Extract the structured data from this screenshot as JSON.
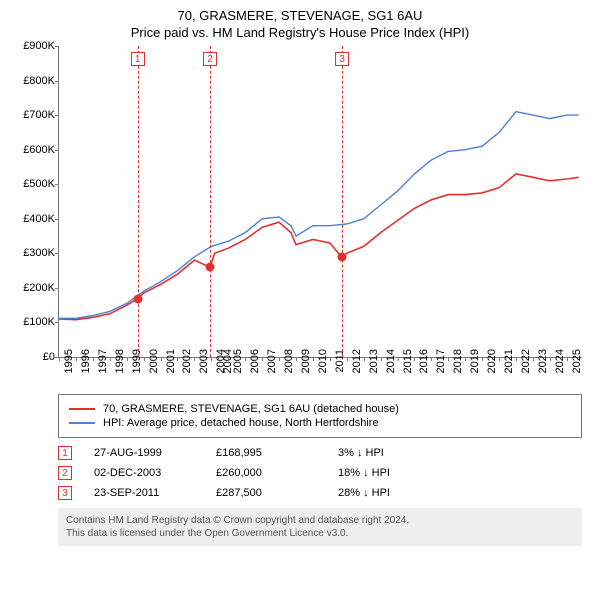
{
  "title": {
    "line1": "70, GRASMERE, STEVENAGE, SG1 6AU",
    "line2": "Price paid vs. HM Land Registry's House Price Index (HPI)"
  },
  "chart": {
    "type": "line",
    "background_color": "#ffffff",
    "axis_color": "#777777",
    "ylim": [
      0,
      900
    ],
    "ytick_step": 100,
    "ytick_prefix": "£",
    "ytick_suffix": "K",
    "xlim": [
      1995,
      2025.9
    ],
    "xticks": [
      1995,
      1996,
      1997,
      1998,
      1999,
      2000,
      2001,
      2002,
      2003,
      2004,
      2004,
      2005,
      2006,
      2007,
      2008,
      2009,
      2010,
      2011,
      2012,
      2013,
      2014,
      2015,
      2016,
      2017,
      2018,
      2019,
      2020,
      2021,
      2022,
      2023,
      2024,
      2025
    ],
    "label_fontsize": 11,
    "series": [
      {
        "name": "property",
        "color": "#e03030",
        "line_width": 1.6,
        "legend": "70, GRASMERE, STEVENAGE, SG1 6AU (detached house)",
        "points": [
          [
            1995,
            110
          ],
          [
            1996,
            108
          ],
          [
            1997,
            115
          ],
          [
            1998,
            125
          ],
          [
            1999,
            150
          ],
          [
            1999.65,
            169
          ],
          [
            2000,
            185
          ],
          [
            2001,
            210
          ],
          [
            2002,
            240
          ],
          [
            2003,
            280
          ],
          [
            2003.92,
            260
          ],
          [
            2004.2,
            300
          ],
          [
            2005,
            315
          ],
          [
            2006,
            340
          ],
          [
            2007,
            375
          ],
          [
            2008,
            390
          ],
          [
            2008.7,
            360
          ],
          [
            2009,
            325
          ],
          [
            2010,
            340
          ],
          [
            2011,
            330
          ],
          [
            2011.73,
            288
          ],
          [
            2012,
            300
          ],
          [
            2013,
            320
          ],
          [
            2014,
            360
          ],
          [
            2015,
            395
          ],
          [
            2016,
            430
          ],
          [
            2017,
            455
          ],
          [
            2018,
            470
          ],
          [
            2019,
            470
          ],
          [
            2020,
            475
          ],
          [
            2021,
            490
          ],
          [
            2022,
            530
          ],
          [
            2023,
            520
          ],
          [
            2024,
            510
          ],
          [
            2025,
            515
          ],
          [
            2025.7,
            520
          ]
        ]
      },
      {
        "name": "hpi",
        "color": "#5080d0",
        "line_width": 1.4,
        "legend": "HPI: Average price, detached house, North Hertfordshire",
        "points": [
          [
            1995,
            112
          ],
          [
            1996,
            112
          ],
          [
            1997,
            120
          ],
          [
            1998,
            132
          ],
          [
            1999,
            155
          ],
          [
            2000,
            190
          ],
          [
            2001,
            218
          ],
          [
            2002,
            250
          ],
          [
            2003,
            290
          ],
          [
            2004,
            320
          ],
          [
            2005,
            335
          ],
          [
            2006,
            360
          ],
          [
            2007,
            400
          ],
          [
            2008,
            405
          ],
          [
            2008.7,
            380
          ],
          [
            2009,
            350
          ],
          [
            2010,
            380
          ],
          [
            2011,
            380
          ],
          [
            2012,
            385
          ],
          [
            2013,
            400
          ],
          [
            2014,
            440
          ],
          [
            2015,
            480
          ],
          [
            2016,
            530
          ],
          [
            2017,
            570
          ],
          [
            2018,
            595
          ],
          [
            2019,
            600
          ],
          [
            2020,
            610
          ],
          [
            2021,
            650
          ],
          [
            2022,
            710
          ],
          [
            2023,
            700
          ],
          [
            2024,
            690
          ],
          [
            2025,
            700
          ],
          [
            2025.7,
            700
          ]
        ]
      }
    ],
    "markers": [
      {
        "n": "1",
        "x": 1999.65,
        "y": 169,
        "color": "#e03030"
      },
      {
        "n": "2",
        "x": 2003.92,
        "y": 260,
        "color": "#e03030"
      },
      {
        "n": "3",
        "x": 2011.73,
        "y": 288,
        "color": "#e03030"
      }
    ]
  },
  "sales": [
    {
      "n": "1",
      "date": "27-AUG-1999",
      "price": "£168,995",
      "diff": "3% ↓ HPI"
    },
    {
      "n": "2",
      "date": "02-DEC-2003",
      "price": "£260,000",
      "diff": "18% ↓ HPI"
    },
    {
      "n": "3",
      "date": "23-SEP-2011",
      "price": "£287,500",
      "diff": "28% ↓ HPI"
    }
  ],
  "footer": {
    "line1": "Contains HM Land Registry data © Crown copyright and database right 2024.",
    "line2": "This data is licensed under the Open Government Licence v3.0."
  },
  "colors": {
    "marker_border": "#e03030",
    "footer_bg": "#eeeeee"
  }
}
